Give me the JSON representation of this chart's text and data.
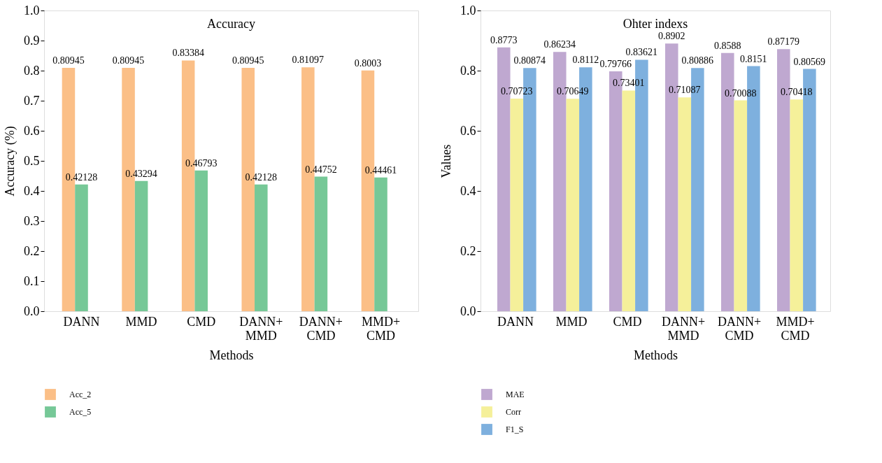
{
  "chart_data": [
    {
      "type": "bar",
      "title": "Accuracy",
      "xlabel": "Methods",
      "ylabel": "Accuracy (%)",
      "categories": [
        "DANN",
        "MMD",
        "CMD",
        "DANN+ MMD",
        "DANN+ CMD",
        "MMD+ CMD"
      ],
      "series": [
        {
          "name": "Acc_2",
          "color": "#fbbf87",
          "values": [
            0.80945,
            0.80945,
            0.83384,
            0.80945,
            0.81097,
            0.8003
          ]
        },
        {
          "name": "Acc_5",
          "color": "#76c897",
          "values": [
            0.42128,
            0.43294,
            0.46793,
            0.42128,
            0.44752,
            0.44461
          ]
        }
      ],
      "ylim": [
        0,
        1
      ],
      "yticks": [
        {
          "value": 0,
          "label": "0.0"
        },
        0.1,
        0.2,
        0.3,
        0.4,
        0.5,
        0.6,
        0.7,
        0.8,
        0.9,
        {
          "value": 1,
          "label": "1.0"
        }
      ],
      "data_labels": true,
      "grid": false,
      "legend": "bottom left"
    },
    {
      "type": "bar",
      "title": "Ohter indexs",
      "xlabel": "Methods",
      "ylabel": "Values",
      "categories": [
        "DANN",
        "MMD",
        "CMD",
        "DANN+ MMD",
        "DANN+ CMD",
        "MMD+ CMD"
      ],
      "series": [
        {
          "name": "MAE",
          "color": "#bfa8d0",
          "values": [
            0.8773,
            0.86234,
            0.79766,
            0.8902,
            0.8588,
            0.87179
          ]
        },
        {
          "name": "Corr",
          "color": "#f5f09a",
          "values": [
            0.70723,
            0.70649,
            0.73401,
            0.71087,
            0.70088,
            0.70418
          ]
        },
        {
          "name": "F1_S",
          "color": "#7eb0de",
          "values": [
            0.80874,
            0.8112,
            0.83621,
            0.80886,
            0.8151,
            0.80569
          ]
        }
      ],
      "ylim": [
        0,
        1
      ],
      "yticks": [
        {
          "value": 0,
          "label": "0.0"
        },
        0.2,
        0.4,
        0.6,
        0.8,
        {
          "value": 1,
          "label": "1.0"
        }
      ],
      "data_labels": true,
      "grid": false,
      "legend": "bottom left"
    }
  ]
}
